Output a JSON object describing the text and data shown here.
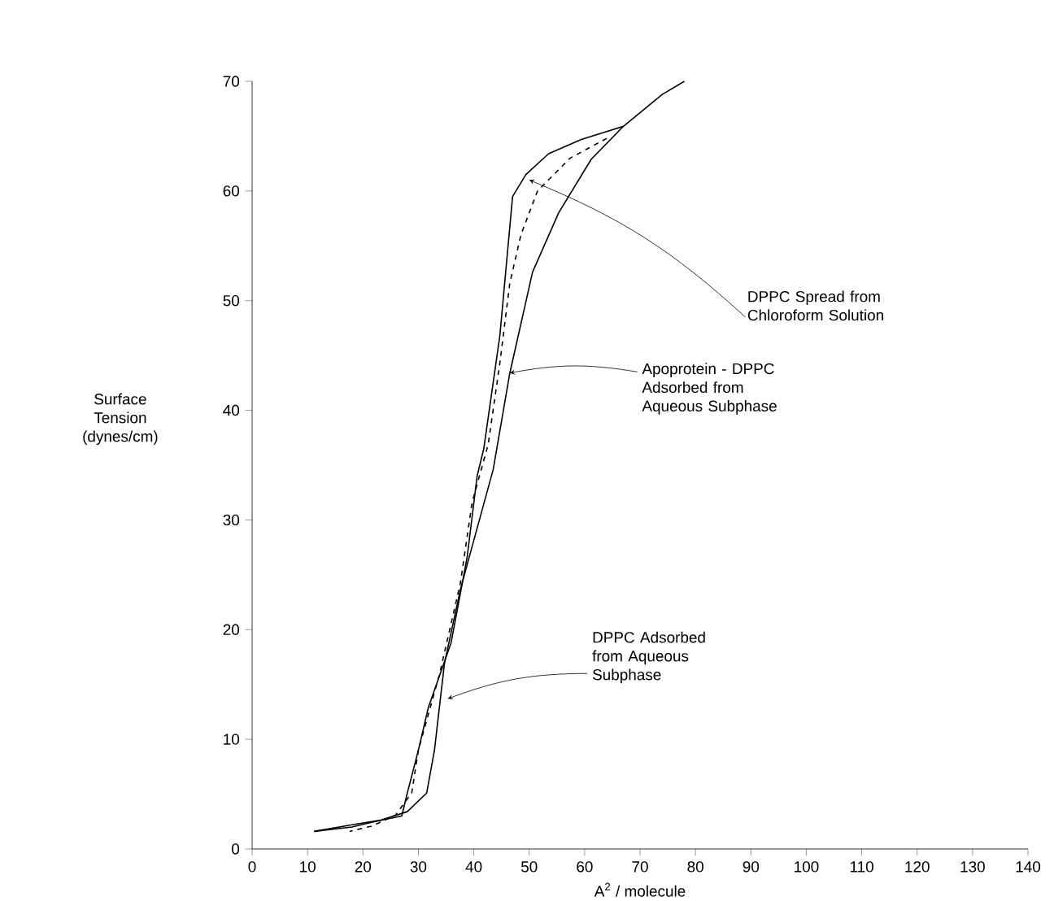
{
  "chart_data": {
    "type": "line",
    "xlabel": "A$^{2}$ / molecule",
    "ylabel": "Surface Tension (dynes/cm)",
    "xlim": [
      0,
      140
    ],
    "ylim": [
      0,
      70
    ],
    "xticks": [
      0,
      10,
      20,
      30,
      40,
      50,
      60,
      70,
      80,
      90,
      100,
      110,
      120,
      130,
      140
    ],
    "yticks": [
      0,
      10,
      20,
      30,
      40,
      50,
      60,
      70
    ],
    "grid": false,
    "marker": "none",
    "series": [
      {
        "color": "#000000",
        "line_style": "solid",
        "x": [
          11.2,
          18,
          23,
          27,
          28,
          30,
          31.8,
          35.9,
          38.8,
          40.6,
          41.8,
          44.7,
          47,
          49.4,
          53.5,
          59.4,
          67,
          74,
          78
        ],
        "values": [
          1.6,
          2,
          2.6,
          3,
          5.1,
          9,
          12.9,
          18.8,
          26.6,
          34,
          36.5,
          46.8,
          59.5,
          61.5,
          63.4,
          64.7,
          65.9,
          68.8,
          70
        ]
      },
      {
        "color": "#000000",
        "line_style": "solid",
        "x": [
          67,
          61.2,
          55.3,
          50.6,
          46.5,
          43.5,
          37.6,
          34.7,
          32.9,
          31.5,
          28,
          23,
          18,
          11.2
        ],
        "values": [
          65.9,
          62.9,
          58,
          52.6,
          43.4,
          34.6,
          23.7,
          16.9,
          9,
          5.1,
          3.4,
          2.6,
          2.2,
          1.6
        ]
      },
      {
        "color": "#000000",
        "line_style": "dashed",
        "x": [
          64,
          57.4,
          51.5,
          48.5,
          46.5,
          44.7,
          42.6,
          39.7,
          37.6,
          33.8,
          30,
          28.8,
          25.9,
          21.7,
          17.6
        ],
        "values": [
          64.8,
          63,
          60,
          56,
          51.6,
          44.3,
          36.9,
          31.6,
          24.3,
          15.9,
          9,
          5.1,
          3.1,
          2.1,
          1.6
        ]
      }
    ],
    "annotations": [
      {
        "text": "DPPC Spread from Chloroform Solution",
        "x": 50,
        "y": 61
      },
      {
        "text": "Apoprotein - DPPC Adsorbed from Aqueous Subphase",
        "x": 46.5,
        "y": 43.4
      },
      {
        "text": "DPPC Adsorbed from Aqueous Subphase",
        "x": 35.3,
        "y": 13.7
      }
    ]
  }
}
